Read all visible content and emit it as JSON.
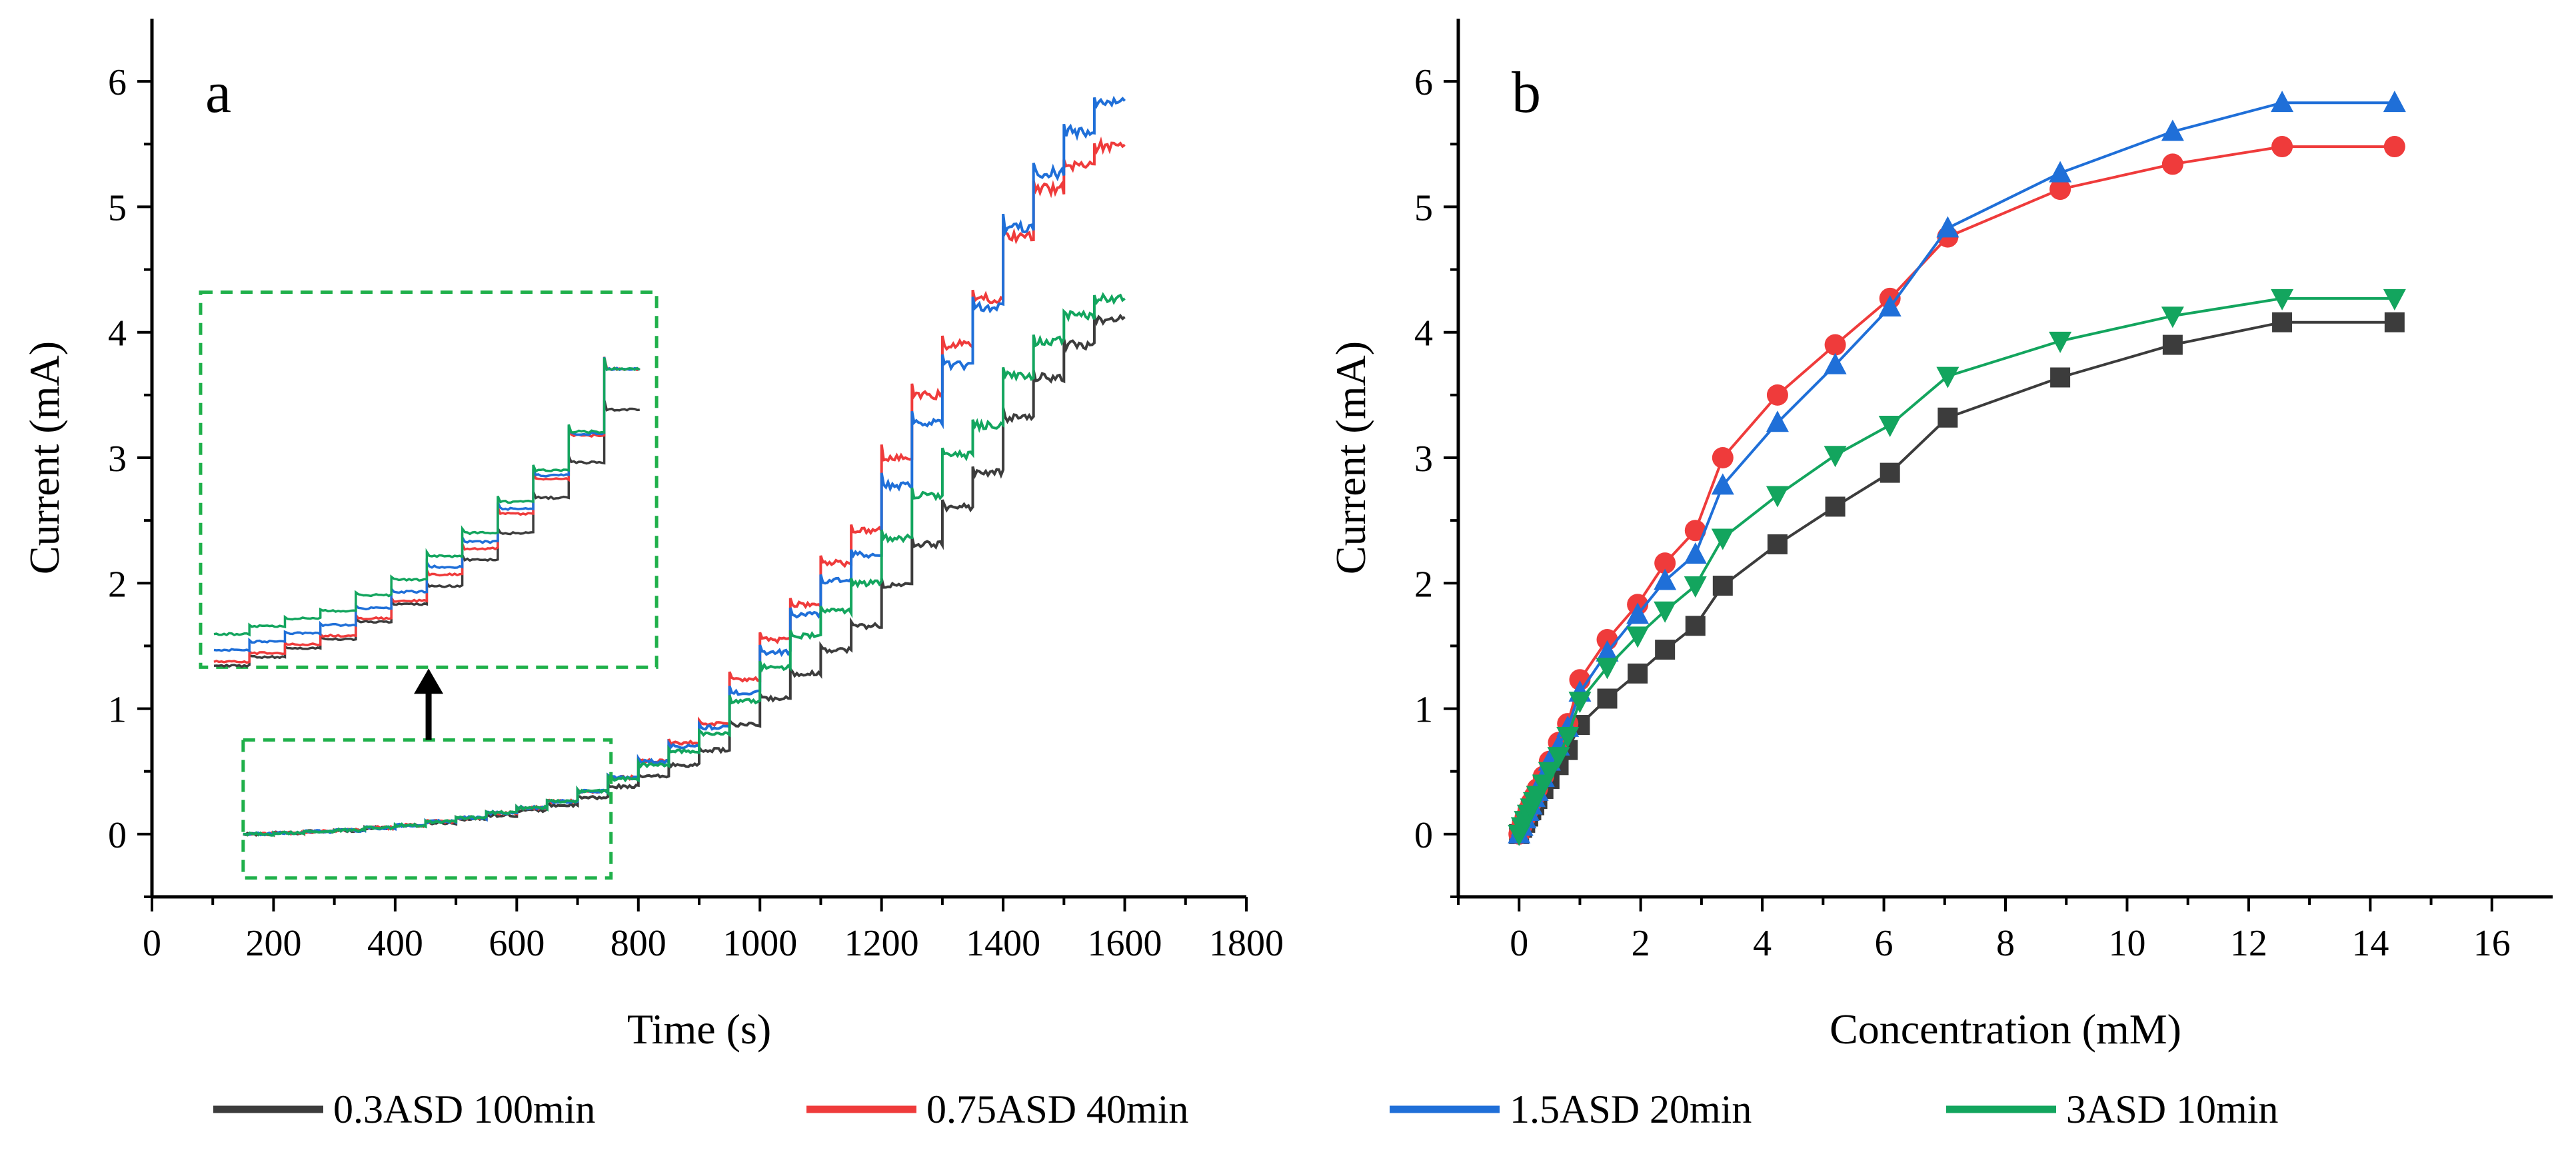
{
  "legend": [
    {
      "name": "0.3ASD 100min",
      "color": "#3c3c3c"
    },
    {
      "name": "0.75ASD 40min",
      "color": "#ef3b3b"
    },
    {
      "name": "1.5ASD 20min",
      "color": "#1f6fd8"
    },
    {
      "name": "3ASD 10min",
      "color": "#13a55e"
    }
  ],
  "chart_data": [
    {
      "panel_label": "a",
      "type": "line",
      "xlabel": "Time (s)",
      "ylabel": "Current (mA)",
      "xlim": [
        0,
        1800
      ],
      "ylim": [
        -0.5,
        6.5
      ],
      "xticks": [
        "0",
        "200",
        "400",
        "600",
        "800",
        "1000",
        "1200",
        "1400",
        "1600",
        "1800"
      ],
      "yticks": [
        "0",
        "1",
        "2",
        "3",
        "4",
        "5",
        "6"
      ],
      "step_times": [
        150,
        200,
        250,
        300,
        350,
        400,
        450,
        500,
        550,
        600,
        650,
        700,
        750,
        800,
        850,
        900,
        950,
        1000,
        1050,
        1100,
        1150,
        1200,
        1250,
        1300,
        1350,
        1400,
        1450,
        1500,
        1550
      ],
      "x_end": 1600,
      "series": [
        {
          "name": "0.3ASD 100min",
          "color": "#3c3c3c",
          "levels": [
            0,
            0.01,
            0.02,
            0.03,
            0.05,
            0.07,
            0.09,
            0.12,
            0.15,
            0.19,
            0.23,
            0.29,
            0.38,
            0.46,
            0.55,
            0.67,
            0.87,
            1.08,
            1.28,
            1.47,
            1.66,
            1.98,
            2.31,
            2.61,
            2.88,
            3.32,
            3.64,
            3.9,
            4.1
          ]
        },
        {
          "name": "0.75ASD 40min",
          "color": "#ef3b3b",
          "levels": [
            0,
            0.01,
            0.02,
            0.03,
            0.05,
            0.07,
            0.1,
            0.13,
            0.17,
            0.21,
            0.26,
            0.34,
            0.45,
            0.58,
            0.73,
            0.88,
            1.23,
            1.55,
            1.83,
            2.16,
            2.42,
            3.0,
            3.5,
            3.9,
            4.27,
            4.76,
            5.14,
            5.34,
            5.48
          ]
        },
        {
          "name": "1.5ASD 20min",
          "color": "#1f6fd8",
          "levels": [
            0,
            0.01,
            0.02,
            0.03,
            0.05,
            0.07,
            0.1,
            0.13,
            0.17,
            0.21,
            0.26,
            0.34,
            0.45,
            0.58,
            0.7,
            0.85,
            1.13,
            1.45,
            1.75,
            2.02,
            2.23,
            2.78,
            3.28,
            3.74,
            4.2,
            4.83,
            5.27,
            5.6,
            5.83
          ]
        },
        {
          "name": "3ASD 10min",
          "color": "#13a55e",
          "levels": [
            0,
            0.01,
            0.02,
            0.03,
            0.05,
            0.07,
            0.1,
            0.13,
            0.17,
            0.21,
            0.26,
            0.34,
            0.44,
            0.55,
            0.66,
            0.8,
            1.06,
            1.33,
            1.58,
            1.78,
            2.0,
            2.36,
            2.7,
            3.02,
            3.26,
            3.65,
            3.93,
            4.13,
            4.27
          ]
        }
      ],
      "zoom_box": {
        "x": [
          150,
          755
        ],
        "y": [
          -0.35,
          0.75
        ]
      },
      "inset_box": {
        "x": [
          80,
          830
        ],
        "y": [
          1.33,
          4.32
        ]
      },
      "inset_ylim": [
        -0.02,
        0.42
      ],
      "arrow": {
        "x": 455,
        "from_y": 0.75,
        "to_y": 1.33
      }
    },
    {
      "panel_label": "b",
      "type": "line",
      "xlabel": "Concentration (mM)",
      "ylabel": "Current (mA)",
      "xlim": [
        -1,
        17
      ],
      "ylim": [
        -0.5,
        6.5
      ],
      "xticks": [
        "0",
        "2",
        "4",
        "6",
        "8",
        "10",
        "12",
        "14",
        "16"
      ],
      "yticks": [
        "0",
        "1",
        "2",
        "3",
        "4",
        "5",
        "6"
      ],
      "x": [
        0,
        0.05,
        0.1,
        0.15,
        0.2,
        0.25,
        0.3,
        0.4,
        0.5,
        0.65,
        0.8,
        1.0,
        1.45,
        1.95,
        2.4,
        2.9,
        3.35,
        4.25,
        5.2,
        6.1,
        7.05,
        8.9,
        10.75,
        12.55,
        14.4
      ],
      "series": [
        {
          "name": "0.3ASD 100min",
          "color": "#3c3c3c",
          "marker": "square",
          "values": [
            0,
            0.05,
            0.09,
            0.14,
            0.19,
            0.23,
            0.28,
            0.36,
            0.44,
            0.55,
            0.67,
            0.87,
            1.08,
            1.28,
            1.47,
            1.66,
            1.98,
            2.31,
            2.61,
            2.88,
            3.32,
            3.64,
            3.9,
            4.08,
            4.08
          ]
        },
        {
          "name": "0.75ASD 40min",
          "color": "#ef3b3b",
          "marker": "circle",
          "values": [
            0,
            0.07,
            0.13,
            0.19,
            0.25,
            0.3,
            0.36,
            0.46,
            0.58,
            0.73,
            0.88,
            1.23,
            1.55,
            1.83,
            2.16,
            2.42,
            3.0,
            3.5,
            3.9,
            4.27,
            4.76,
            5.14,
            5.34,
            5.48,
            5.48
          ]
        },
        {
          "name": "1.5ASD 20min",
          "color": "#1f6fd8",
          "marker": "triangle-up",
          "values": [
            0,
            0.06,
            0.12,
            0.18,
            0.23,
            0.29,
            0.34,
            0.45,
            0.58,
            0.7,
            0.85,
            1.13,
            1.45,
            1.75,
            2.02,
            2.23,
            2.78,
            3.28,
            3.74,
            4.2,
            4.83,
            5.27,
            5.6,
            5.83,
            5.83
          ]
        },
        {
          "name": "3ASD 10min",
          "color": "#13a55e",
          "marker": "triangle-down",
          "values": [
            0,
            0.06,
            0.11,
            0.16,
            0.21,
            0.26,
            0.31,
            0.4,
            0.5,
            0.62,
            0.78,
            1.06,
            1.33,
            1.58,
            1.78,
            1.98,
            2.36,
            2.7,
            3.02,
            3.26,
            3.65,
            3.93,
            4.13,
            4.27,
            4.27
          ]
        }
      ]
    }
  ]
}
